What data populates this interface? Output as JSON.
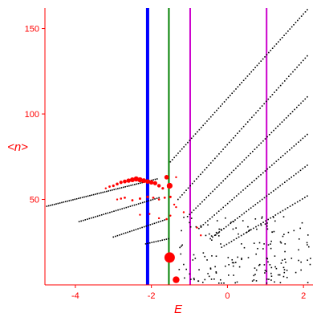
{
  "chart_data": {
    "type": "scatter",
    "title": "",
    "xlabel": "E",
    "ylabel": "<n>",
    "xlim": [
      -4.8,
      2.25
    ],
    "ylim": [
      0,
      162
    ],
    "x_ticks": [
      {
        "value": -4,
        "label": "-4"
      },
      {
        "value": -2,
        "label": "-2"
      },
      {
        "value": 0,
        "label": "0"
      },
      {
        "value": 2,
        "label": "2"
      }
    ],
    "y_ticks": [
      {
        "value": 50,
        "label": "50"
      },
      {
        "value": 100,
        "label": "100"
      },
      {
        "value": 150,
        "label": "150"
      }
    ],
    "vertical_lines": [
      {
        "x": -2.1,
        "color": "#0000ff"
      },
      {
        "x": -1.54,
        "color": "#008000"
      },
      {
        "x": -0.98,
        "color": "#cc00cc"
      },
      {
        "x": 1.03,
        "color": "#cc00cc"
      }
    ],
    "series": [
      {
        "color": "#000000",
        "bands": [
          {
            "x_start": -4.75,
            "x_end": -1.85,
            "y_start": 46,
            "y_end": 62,
            "points": 60
          },
          {
            "x_start": -3.9,
            "x_end": -1.8,
            "y_start": 37,
            "y_end": 51,
            "points": 40
          },
          {
            "x_start": -3.0,
            "x_end": -1.65,
            "y_start": 28,
            "y_end": 38,
            "points": 26
          },
          {
            "x_start": -2.15,
            "x_end": -1.55,
            "y_start": 24,
            "y_end": 27,
            "points": 12
          },
          {
            "x_start": -1.5,
            "x_end": 2.1,
            "y_start": 72,
            "y_end": 161,
            "points": 72
          },
          {
            "x_start": -1.3,
            "x_end": 2.1,
            "y_start": 50,
            "y_end": 134,
            "points": 64
          },
          {
            "x_start": -1.05,
            "x_end": 2.1,
            "y_start": 40,
            "y_end": 110,
            "points": 58
          },
          {
            "x_start": -0.75,
            "x_end": 2.1,
            "y_start": 33,
            "y_end": 88,
            "points": 50
          },
          {
            "x_start": -0.45,
            "x_end": 2.1,
            "y_start": 27,
            "y_end": 70,
            "points": 44
          },
          {
            "x_start": -0.15,
            "x_end": 2.1,
            "y_start": 22,
            "y_end": 52,
            "points": 36
          }
        ],
        "scatter_region": {
          "x_range": [
            -1.3,
            2.2
          ],
          "y_range": [
            1,
            40
          ],
          "count": 180
        }
      },
      {
        "color": "#ff0000",
        "points": [
          {
            "x": -3.2,
            "y": 56.5,
            "r": 1.2
          },
          {
            "x": -3.1,
            "y": 57.5,
            "r": 1.4
          },
          {
            "x": -3.0,
            "y": 58.0,
            "r": 1.6
          },
          {
            "x": -2.9,
            "y": 59.0,
            "r": 1.8
          },
          {
            "x": -2.8,
            "y": 60.0,
            "r": 2.1
          },
          {
            "x": -2.7,
            "y": 60.5,
            "r": 2.4
          },
          {
            "x": -2.6,
            "y": 61.0,
            "r": 2.7
          },
          {
            "x": -2.5,
            "y": 61.5,
            "r": 3.0
          },
          {
            "x": -2.4,
            "y": 62.0,
            "r": 3.2
          },
          {
            "x": -2.3,
            "y": 61.5,
            "r": 3.2
          },
          {
            "x": -2.2,
            "y": 61.0,
            "r": 3.0
          },
          {
            "x": -2.1,
            "y": 60.5,
            "r": 2.8
          },
          {
            "x": -2.0,
            "y": 60.0,
            "r": 2.8
          },
          {
            "x": -1.9,
            "y": 59.5,
            "r": 2.6
          },
          {
            "x": -1.8,
            "y": 58.0,
            "r": 2.2
          },
          {
            "x": -1.7,
            "y": 56.5,
            "r": 1.6
          },
          {
            "x": -1.55,
            "y": 57.5,
            "r": 2.0
          },
          {
            "x": -1.35,
            "y": 63.0,
            "r": 1.2
          },
          {
            "x": -2.9,
            "y": 50.0,
            "r": 1.2
          },
          {
            "x": -2.8,
            "y": 50.5,
            "r": 1.3
          },
          {
            "x": -2.7,
            "y": 51.0,
            "r": 1.4
          },
          {
            "x": -2.5,
            "y": 49.5,
            "r": 1.4
          },
          {
            "x": -2.3,
            "y": 50.5,
            "r": 1.5
          },
          {
            "x": -2.1,
            "y": 51.5,
            "r": 1.6
          },
          {
            "x": -1.95,
            "y": 51.0,
            "r": 1.4
          },
          {
            "x": -1.8,
            "y": 50.0,
            "r": 1.3
          },
          {
            "x": -1.65,
            "y": 51.0,
            "r": 1.4
          },
          {
            "x": -1.5,
            "y": 51.5,
            "r": 1.5
          },
          {
            "x": -1.4,
            "y": 47.0,
            "r": 1.2
          },
          {
            "x": -2.3,
            "y": 41.0,
            "r": 1.2
          },
          {
            "x": -2.05,
            "y": 41.5,
            "r": 1.2
          },
          {
            "x": -1.8,
            "y": 39.0,
            "r": 1.2
          },
          {
            "x": -1.6,
            "y": 38.5,
            "r": 1.3
          },
          {
            "x": -1.5,
            "y": 40.5,
            "r": 1.2
          },
          {
            "x": -1.35,
            "y": 45.5,
            "r": 1.2
          },
          {
            "x": -1.15,
            "y": 42.5,
            "r": 1.2
          },
          {
            "x": -0.8,
            "y": 33.5,
            "r": 1.2
          },
          {
            "x": -0.7,
            "y": 29.0,
            "r": 1.2
          },
          {
            "x": -1.6,
            "y": 63.0,
            "r": 2.8
          },
          {
            "x": -1.52,
            "y": 58.0,
            "r": 3.6
          },
          {
            "x": -1.52,
            "y": 16.0,
            "r": 6.5
          },
          {
            "x": -1.35,
            "y": 3.0,
            "r": 4.2
          }
        ]
      }
    ]
  }
}
